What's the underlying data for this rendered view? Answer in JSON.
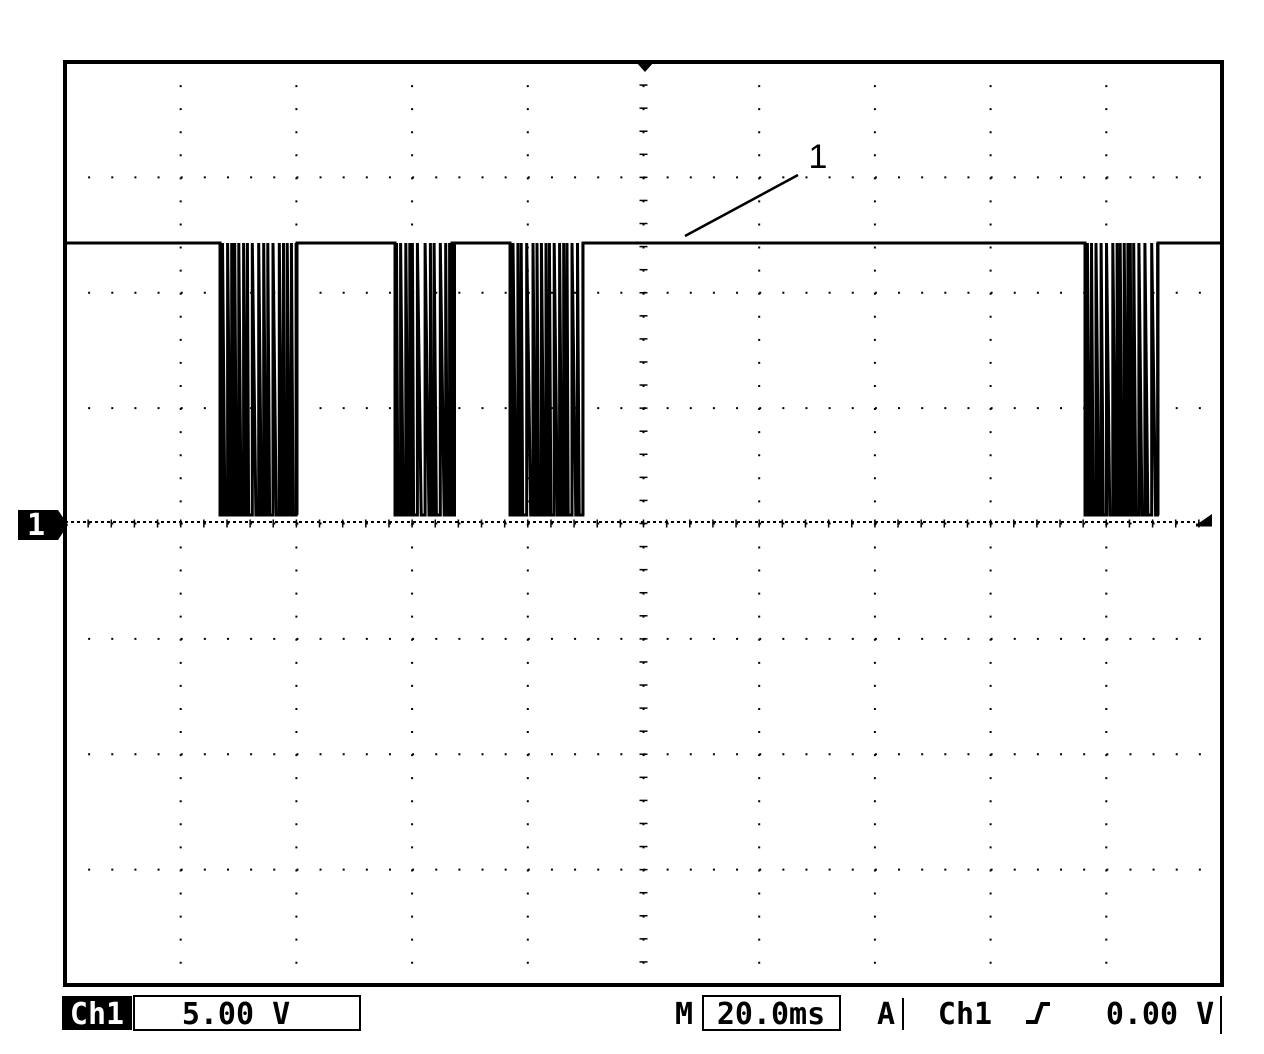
{
  "screen": {
    "annotation": "1",
    "channel_marker": "1"
  },
  "status_bar": {
    "channel": "Ch1",
    "scale": "5.00 V",
    "timebase_prefix": "M",
    "timebase": "20.0ms",
    "trigger_mode": "A",
    "trigger_source": "Ch1",
    "trigger_level": "0.00 V"
  }
}
